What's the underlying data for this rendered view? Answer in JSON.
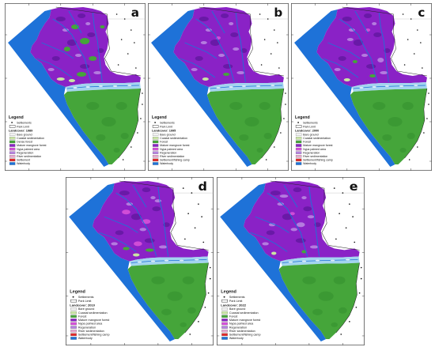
{
  "figure": {
    "panels": [
      {
        "letter": "a",
        "legend": {
          "title": "Legend",
          "settlements": "Settlements",
          "park_limit": "Park Limit",
          "landcover": "Landcover: 1989",
          "classes": [
            {
              "label": "Bare ground",
              "color": "#f2f2f2"
            },
            {
              "label": "Coastal sedimentation",
              "color": "#c9e5a4"
            },
            {
              "label": "Dense forest",
              "color": "#45a53a"
            },
            {
              "label": "Mature mangrove forest",
              "color": "#8a22c6"
            },
            {
              "label": "Nypa palmed area",
              "color": "#d44fd8"
            },
            {
              "label": "Regeneration",
              "color": "#b681e0"
            },
            {
              "label": "River sedimentation",
              "color": "#e7a7cf"
            },
            {
              "label": "Settlement",
              "color": "#e02a2a"
            },
            {
              "label": "Waterbody",
              "color": "#1e72d8"
            }
          ]
        }
      },
      {
        "letter": "b",
        "legend": {
          "title": "Legend",
          "settlements": "Settlements",
          "park_limit": "Park Limit",
          "landcover": "Landcover: 1995",
          "classes": [
            {
              "label": "Bare ground",
              "color": "#f2f2f2"
            },
            {
              "label": "Coastal sedimentation",
              "color": "#c9e5a4"
            },
            {
              "label": "Forest",
              "color": "#45a53a"
            },
            {
              "label": "Mature mangrove forest",
              "color": "#8a22c6"
            },
            {
              "label": "Nypa palmed area",
              "color": "#d44fd8"
            },
            {
              "label": "Regeneration",
              "color": "#b681e0"
            },
            {
              "label": "River sedimentation",
              "color": "#e7a7cf"
            },
            {
              "label": "Settlement/fishing camp",
              "color": "#e02a2a"
            },
            {
              "label": "Waterbody",
              "color": "#1e72d8"
            }
          ]
        }
      },
      {
        "letter": "c",
        "legend": {
          "title": "Legend",
          "settlements": "Settlements",
          "park_limit": "Park Limit",
          "landcover": "Landcover: 2000",
          "classes": [
            {
              "label": "Bare ground",
              "color": "#f2f2f2"
            },
            {
              "label": "Coastal sedimentation",
              "color": "#c9e5a4"
            },
            {
              "label": "Forest",
              "color": "#45a53a"
            },
            {
              "label": "Mature mangrove forest",
              "color": "#8a22c6"
            },
            {
              "label": "Nypa palmed area",
              "color": "#d44fd8"
            },
            {
              "label": "Regeneration",
              "color": "#b681e0"
            },
            {
              "label": "River sedimentation",
              "color": "#e7a7cf"
            },
            {
              "label": "Settlement/fishing camp",
              "color": "#e02a2a"
            },
            {
              "label": "Waterbody",
              "color": "#1e72d8"
            }
          ]
        }
      },
      {
        "letter": "d",
        "legend": {
          "title": "Legend",
          "settlements": "Settlements",
          "park_limit": "Park Limit",
          "landcover": "Landcover: 2010",
          "classes": [
            {
              "label": "Bare ground",
              "color": "#f2f2f2"
            },
            {
              "label": "Coastal sedimentation",
              "color": "#c9e5a4"
            },
            {
              "label": "Forest",
              "color": "#45a53a"
            },
            {
              "label": "Mature mangrove forest",
              "color": "#8a22c6"
            },
            {
              "label": "Nypa palmed area",
              "color": "#d44fd8"
            },
            {
              "label": "Regeneration",
              "color": "#b681e0"
            },
            {
              "label": "River sedimentation",
              "color": "#e7a7cf"
            },
            {
              "label": "Settlement/fishing camp",
              "color": "#e02a2a"
            },
            {
              "label": "Waterbody",
              "color": "#1e72d8"
            }
          ]
        }
      },
      {
        "letter": "e",
        "legend": {
          "title": "Legend",
          "settlements": "Settlements",
          "park_limit": "Park Limit",
          "landcover": "Landcover: 2022",
          "classes": [
            {
              "label": "Bare ground",
              "color": "#f2f2f2"
            },
            {
              "label": "Coastal sedimentation",
              "color": "#c9e5a4"
            },
            {
              "label": "Forest",
              "color": "#45a53a"
            },
            {
              "label": "Mature mangrove forest",
              "color": "#8a22c6"
            },
            {
              "label": "Nypa palmed area",
              "color": "#d44fd8"
            },
            {
              "label": "Regeneration",
              "color": "#b681e0"
            },
            {
              "label": "River sedimentation",
              "color": "#e7a7cf"
            },
            {
              "label": "Settlement/fishing camp",
              "color": "#e02a2a"
            },
            {
              "label": "Waterbody",
              "color": "#1e72d8"
            }
          ]
        }
      }
    ]
  },
  "colors": {
    "sea": "#1e72d8",
    "mangrove": "#8a22c6",
    "mangrove_dark": "#6518a3",
    "regeneration": "#b681e0",
    "nypa": "#d44fd8",
    "forest": "#45a53a",
    "forest_dark": "#36912f",
    "coastal_sedimentation": "#c9e5a4",
    "estuary": "#a3d4ef",
    "settlement_dot": "#111111",
    "frame": "#444444"
  }
}
